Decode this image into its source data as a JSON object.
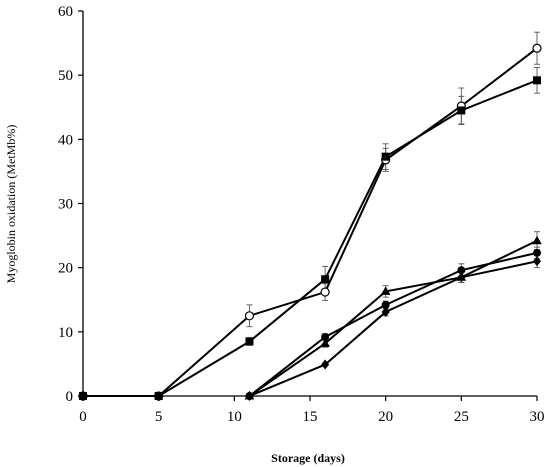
{
  "chart_data": {
    "type": "line",
    "title": "",
    "xlabel": "Storage (days)",
    "ylabel": "Myoglobin oxidation (MetMb%)",
    "xlim": [
      0,
      30
    ],
    "ylim": [
      0,
      60
    ],
    "xticks": [
      0,
      5,
      10,
      15,
      20,
      25,
      30
    ],
    "yticks": [
      0,
      10,
      20,
      30,
      40,
      50,
      60
    ],
    "grid": false,
    "legend": "none",
    "colors": {
      "line": "#000000",
      "marker": "#000000",
      "open_marker_fill": "#ffffff"
    },
    "series": [
      {
        "marker": "open-circle",
        "x": [
          0,
          5,
          11,
          16,
          20,
          25,
          30
        ],
        "y": [
          0,
          0,
          12.5,
          16.2,
          36.8,
          45.2,
          54.2
        ],
        "err": [
          0,
          0,
          1.7,
          1.3,
          1.8,
          2.8,
          2.5
        ]
      },
      {
        "marker": "filled-square",
        "x": [
          0,
          5,
          11,
          16,
          20,
          25,
          30
        ],
        "y": [
          0,
          0,
          8.5,
          18.2,
          37.3,
          44.5,
          49.2
        ],
        "err": [
          0,
          0,
          0.6,
          2.0,
          2.0,
          2.2,
          2.0
        ]
      },
      {
        "marker": "filled-triangle",
        "x": [
          11,
          16,
          20,
          25,
          30
        ],
        "y": [
          0,
          8.2,
          16.3,
          18.5,
          24.2
        ],
        "err": [
          0,
          0.6,
          0.9,
          0.8,
          1.4
        ]
      },
      {
        "marker": "filled-circle",
        "x": [
          11,
          16,
          20,
          25,
          30
        ],
        "y": [
          0,
          9.2,
          14.2,
          19.6,
          22.3
        ],
        "err": [
          0,
          0.5,
          0.6,
          1.0,
          0.9
        ]
      },
      {
        "marker": "filled-diamond",
        "x": [
          11,
          16,
          20,
          25,
          30
        ],
        "y": [
          0,
          4.9,
          13.1,
          18.5,
          21.0
        ],
        "err": [
          0,
          0.2,
          0.6,
          0.8,
          1.0
        ]
      }
    ]
  }
}
